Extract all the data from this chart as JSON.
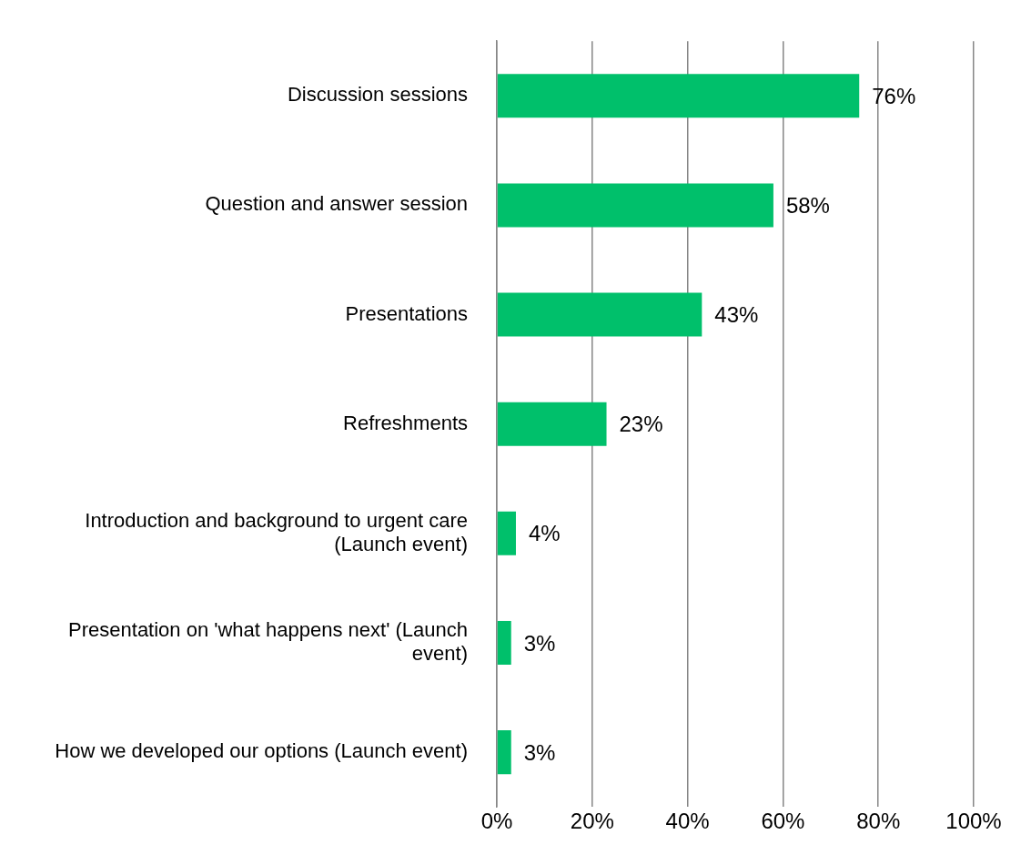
{
  "chart_data": {
    "type": "bar",
    "orientation": "horizontal",
    "categories": [
      "Discussion sessions",
      "Question and answer session",
      "Presentations",
      "Refreshments",
      "Introduction and background to urgent care (Launch event)",
      "Presentation on 'what happens next' (Launch event)",
      "How we developed our options (Launch event)"
    ],
    "values": [
      76,
      58,
      43,
      23,
      4,
      3,
      3
    ],
    "value_labels": [
      "76%",
      "58%",
      "43%",
      "23%",
      "4%",
      "3%",
      "3%"
    ],
    "color": "#00c06b",
    "xlim": [
      0,
      100
    ],
    "xticks": [
      {
        "value": 0,
        "label": "0%"
      },
      {
        "value": 20,
        "label": "20%"
      },
      {
        "value": 40,
        "label": "40%"
      },
      {
        "value": 60,
        "label": "60%"
      },
      {
        "value": 80,
        "label": "80%"
      },
      {
        "value": 100,
        "label": "100%"
      }
    ],
    "grid": "x"
  }
}
